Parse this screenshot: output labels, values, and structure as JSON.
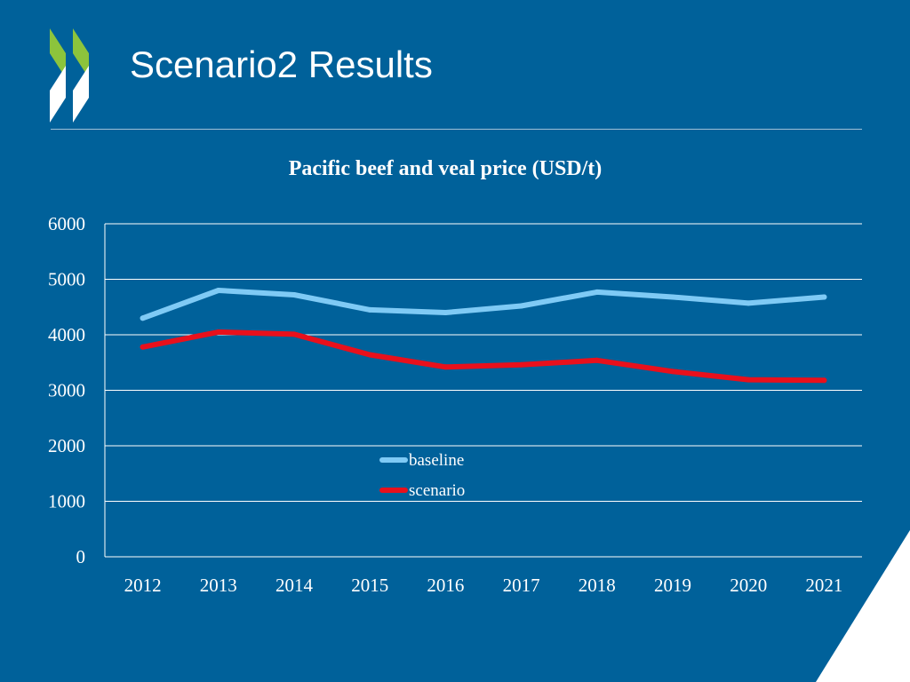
{
  "slide": {
    "title": "Scenario2 Results"
  },
  "colors": {
    "background": "#00619a",
    "baseline": "#7fcaf5",
    "scenario": "#e8101c",
    "logo_green": "#8cc43c",
    "grid": "#ffffff"
  },
  "chart_data": {
    "type": "line",
    "title": "Pacific beef and veal price (USD/t)",
    "xlabel": "",
    "ylabel": "",
    "categories": [
      "2012",
      "2013",
      "2014",
      "2015",
      "2016",
      "2017",
      "2018",
      "2019",
      "2020",
      "2021"
    ],
    "yticks": [
      0,
      1000,
      2000,
      3000,
      4000,
      5000,
      6000
    ],
    "ylim": [
      0,
      6000
    ],
    "grid": true,
    "legend_position": "center",
    "series": [
      {
        "name": "baseline",
        "values": [
          4300,
          4800,
          4720,
          4450,
          4400,
          4520,
          4770,
          4680,
          4570,
          4680
        ]
      },
      {
        "name": "scenario",
        "values": [
          3780,
          4050,
          4010,
          3640,
          3420,
          3460,
          3540,
          3340,
          3190,
          3180
        ]
      }
    ]
  }
}
